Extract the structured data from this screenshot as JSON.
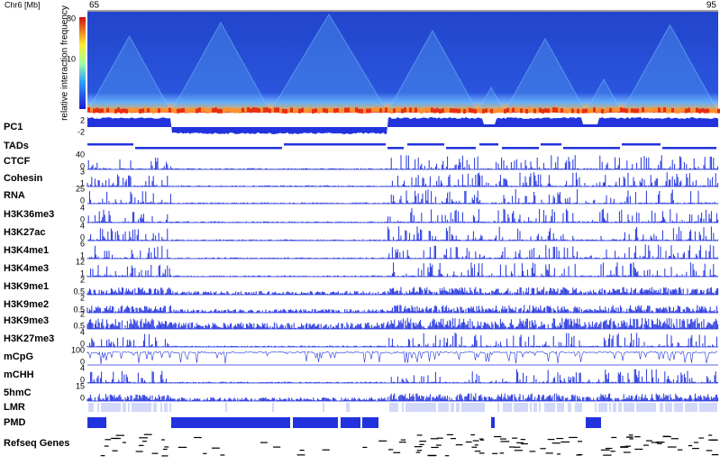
{
  "axis": {
    "label": "Chr6 [Mb]",
    "start": 65,
    "end": 95
  },
  "colorbar": {
    "label": "relative interaction frequency",
    "ticks": [
      80,
      10
    ]
  },
  "tracks": [
    {
      "name": "PC1",
      "scale": [
        2,
        -2
      ]
    },
    {
      "name": "TADs",
      "scale": []
    },
    {
      "name": "CTCF",
      "scale": [
        40,
        0
      ]
    },
    {
      "name": "Cohesin",
      "scale": [
        3,
        1
      ]
    },
    {
      "name": "RNA",
      "scale": [
        25,
        0
      ]
    },
    {
      "name": "H3K36me3",
      "scale": [
        4,
        0
      ]
    },
    {
      "name": "H3K27ac",
      "scale": [
        4,
        0
      ]
    },
    {
      "name": "H3K4me1",
      "scale": [
        6,
        1
      ]
    },
    {
      "name": "H3K4me3",
      "scale": [
        12,
        1
      ]
    },
    {
      "name": "H3K9me1",
      "scale": [
        2,
        0.5
      ]
    },
    {
      "name": "H3K9me2",
      "scale": [
        2,
        0.5
      ]
    },
    {
      "name": "H3K9me3",
      "scale": [
        2,
        0.5
      ]
    },
    {
      "name": "H3K27me3",
      "scale": [
        4,
        0
      ]
    },
    {
      "name": "mCpG",
      "scale": [
        100,
        0
      ]
    },
    {
      "name": "mCHH",
      "scale": [
        4,
        0
      ]
    },
    {
      "name": "5hmC",
      "scale": [
        15,
        0
      ]
    },
    {
      "name": "LMR",
      "scale": []
    },
    {
      "name": "PMD",
      "scale": []
    },
    {
      "name": "Refseq Genes",
      "scale": []
    }
  ]
}
